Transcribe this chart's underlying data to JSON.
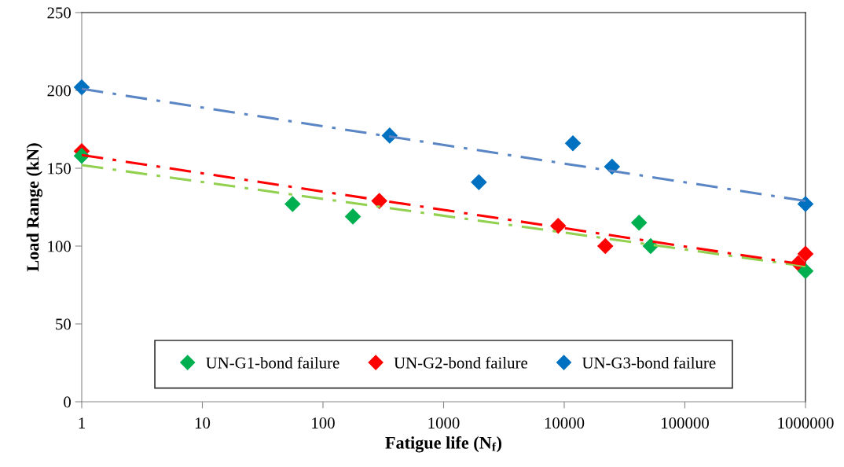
{
  "chart_data": {
    "type": "scatter",
    "xlabel": "Fatigue life (N$_{f}$)",
    "ylabel": "Load Range (kN)",
    "log": "x",
    "xlim": [
      1,
      1000000
    ],
    "xticks": [
      1,
      10,
      100,
      1000,
      10000,
      100000,
      1000000
    ],
    "ylim": [
      0,
      250
    ],
    "yticks": [
      0,
      50,
      100,
      150,
      200,
      250
    ],
    "grid": false,
    "legend": "bottom",
    "marker": "diamond",
    "series": [
      {
        "name": "UN-G1-bond failure",
        "color": "#00b050",
        "x": [
          1,
          56,
          177,
          41700,
          52000,
          1000000
        ],
        "values": [
          158,
          127,
          119,
          115,
          100,
          84
        ]
      },
      {
        "name": "UN-G2-bond failure",
        "color": "#ff0000",
        "x": [
          1,
          293,
          8900,
          21900,
          870000,
          1000000
        ],
        "values": [
          161,
          129,
          113,
          100,
          89,
          95
        ]
      },
      {
        "name": "UN-G3-bond failure",
        "color": "#0070c0",
        "x": [
          1,
          357,
          1960,
          11800,
          24900,
          1000000
        ],
        "values": [
          202,
          171,
          141,
          166,
          151,
          127
        ]
      },
      {
        "type": "line",
        "color": "#92d050",
        "line_style": "dashed",
        "marker": "none",
        "x": [
          1,
          1000000
        ],
        "values": [
          152,
          87
        ]
      },
      {
        "type": "line",
        "color": "#ff0000",
        "line_style": "dashed",
        "marker": "none",
        "x": [
          1,
          1000000
        ],
        "values": [
          158.5,
          88
        ]
      },
      {
        "type": "line",
        "color": "#5b86c5",
        "line_style": "dashed",
        "marker": "none",
        "x": [
          1,
          1000000
        ],
        "values": [
          201,
          129
        ]
      }
    ]
  }
}
